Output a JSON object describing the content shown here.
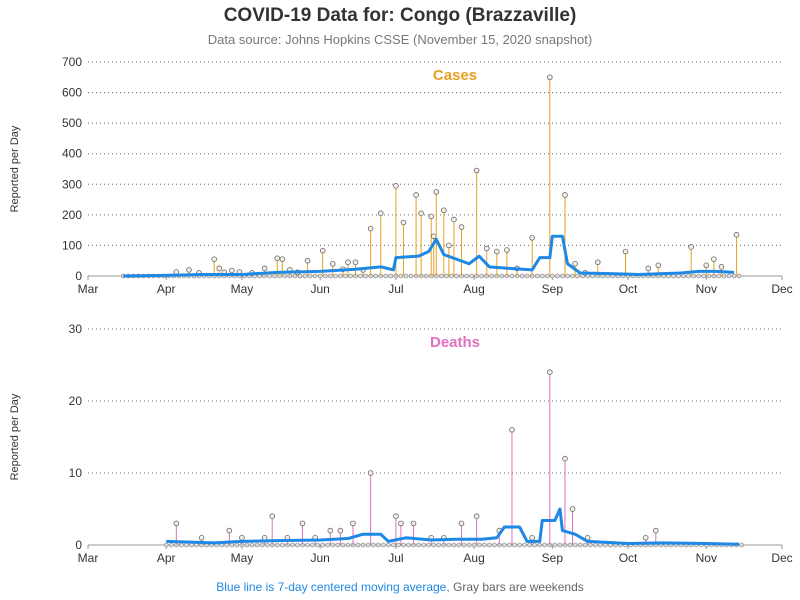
{
  "header": {
    "title": "COVID-19 Data for: Congo (Brazzaville)",
    "subtitle": "Data source: Johns Hopkins CSSE (November 15, 2020 snapshot)"
  },
  "footer": {
    "avg_note": "Blue line is 7-day centered moving average,",
    "weekend_note": "Gray bars are weekends"
  },
  "colors": {
    "cases": "#e8a020",
    "deaths": "#e070c0",
    "average": "#1e88e5",
    "weekend": "#888888",
    "grid": "#666666"
  },
  "chart_data": [
    {
      "type": "line",
      "title": "Cases",
      "ylabel": "Reported per Day",
      "ylim": [
        0,
        700
      ],
      "yticks": [
        0,
        100,
        200,
        300,
        400,
        500,
        600,
        700
      ],
      "xlim": [
        "2020-03-01",
        "2020-12-01"
      ],
      "xticks": [
        {
          "date": "2020-03-01",
          "label": "Mar"
        },
        {
          "date": "2020-04-01",
          "label": "Apr"
        },
        {
          "date": "2020-05-01",
          "label": "May"
        },
        {
          "date": "2020-06-01",
          "label": "Jun"
        },
        {
          "date": "2020-07-01",
          "label": "Jul"
        },
        {
          "date": "2020-08-01",
          "label": "Aug"
        },
        {
          "date": "2020-09-01",
          "label": "Sep"
        },
        {
          "date": "2020-10-01",
          "label": "Oct"
        },
        {
          "date": "2020-11-01",
          "label": "Nov"
        },
        {
          "date": "2020-12-01",
          "label": "Dec"
        }
      ],
      "grid": true,
      "series": [
        {
          "points": [
            [
              "2020-04-05",
              13
            ],
            [
              "2020-04-10",
              20
            ],
            [
              "2020-04-14",
              10
            ],
            [
              "2020-04-20",
              55
            ],
            [
              "2020-04-22",
              25
            ],
            [
              "2020-04-24",
              12
            ],
            [
              "2020-04-27",
              18
            ],
            [
              "2020-04-30",
              13
            ],
            [
              "2020-05-05",
              10
            ],
            [
              "2020-05-10",
              25
            ],
            [
              "2020-05-15",
              58
            ],
            [
              "2020-05-17",
              55
            ],
            [
              "2020-05-20",
              20
            ],
            [
              "2020-05-23",
              12
            ],
            [
              "2020-05-27",
              50
            ],
            [
              "2020-06-02",
              83
            ],
            [
              "2020-06-06",
              40
            ],
            [
              "2020-06-10",
              22
            ],
            [
              "2020-06-12",
              45
            ],
            [
              "2020-06-15",
              45
            ],
            [
              "2020-06-18",
              20
            ],
            [
              "2020-06-21",
              155
            ],
            [
              "2020-06-25",
              205
            ],
            [
              "2020-07-01",
              295
            ],
            [
              "2020-07-04",
              175
            ],
            [
              "2020-07-09",
              265
            ],
            [
              "2020-07-11",
              205
            ],
            [
              "2020-07-15",
              195
            ],
            [
              "2020-07-16",
              130
            ],
            [
              "2020-07-17",
              275
            ],
            [
              "2020-07-20",
              215
            ],
            [
              "2020-07-22",
              100
            ],
            [
              "2020-07-24",
              185
            ],
            [
              "2020-07-27",
              160
            ],
            [
              "2020-08-02",
              345
            ],
            [
              "2020-08-06",
              90
            ],
            [
              "2020-08-10",
              80
            ],
            [
              "2020-08-14",
              85
            ],
            [
              "2020-08-18",
              25
            ],
            [
              "2020-08-24",
              125
            ],
            [
              "2020-08-31",
              650
            ],
            [
              "2020-09-06",
              265
            ],
            [
              "2020-09-10",
              40
            ],
            [
              "2020-09-14",
              10
            ],
            [
              "2020-09-19",
              45
            ],
            [
              "2020-09-30",
              80
            ],
            [
              "2020-10-09",
              25
            ],
            [
              "2020-10-13",
              35
            ],
            [
              "2020-10-26",
              95
            ],
            [
              "2020-11-01",
              35
            ],
            [
              "2020-11-04",
              55
            ],
            [
              "2020-11-07",
              30
            ],
            [
              "2020-11-13",
              135
            ]
          ]
        },
        {
          "name": "7-day average",
          "points": [
            [
              "2020-03-15",
              0
            ],
            [
              "2020-04-01",
              2
            ],
            [
              "2020-04-15",
              5
            ],
            [
              "2020-05-01",
              5
            ],
            [
              "2020-05-15",
              12
            ],
            [
              "2020-06-01",
              15
            ],
            [
              "2020-06-15",
              22
            ],
            [
              "2020-06-25",
              30
            ],
            [
              "2020-06-30",
              20
            ],
            [
              "2020-07-01",
              60
            ],
            [
              "2020-07-10",
              65
            ],
            [
              "2020-07-14",
              80
            ],
            [
              "2020-07-17",
              120
            ],
            [
              "2020-07-20",
              70
            ],
            [
              "2020-07-30",
              40
            ],
            [
              "2020-08-03",
              65
            ],
            [
              "2020-08-07",
              30
            ],
            [
              "2020-08-15",
              25
            ],
            [
              "2020-08-24",
              20
            ],
            [
              "2020-08-27",
              60
            ],
            [
              "2020-08-31",
              60
            ],
            [
              "2020-09-01",
              130
            ],
            [
              "2020-09-05",
              130
            ],
            [
              "2020-09-07",
              40
            ],
            [
              "2020-09-12",
              10
            ],
            [
              "2020-09-22",
              8
            ],
            [
              "2020-10-05",
              5
            ],
            [
              "2020-10-22",
              10
            ],
            [
              "2020-10-29",
              15
            ],
            [
              "2020-11-05",
              15
            ],
            [
              "2020-11-12",
              12
            ]
          ]
        }
      ]
    },
    {
      "type": "line",
      "title": "Deaths",
      "ylabel": "Reported per Day",
      "ylim": [
        0,
        30
      ],
      "yticks": [
        0,
        10,
        20,
        30
      ],
      "xlim": [
        "2020-03-01",
        "2020-12-01"
      ],
      "xticks": [
        {
          "date": "2020-03-01",
          "label": "Mar"
        },
        {
          "date": "2020-04-01",
          "label": "Apr"
        },
        {
          "date": "2020-05-01",
          "label": "May"
        },
        {
          "date": "2020-06-01",
          "label": "Jun"
        },
        {
          "date": "2020-07-01",
          "label": "Jul"
        },
        {
          "date": "2020-08-01",
          "label": "Aug"
        },
        {
          "date": "2020-09-01",
          "label": "Sep"
        },
        {
          "date": "2020-10-01",
          "label": "Oct"
        },
        {
          "date": "2020-11-01",
          "label": "Nov"
        },
        {
          "date": "2020-12-01",
          "label": "Dec"
        }
      ],
      "grid": true,
      "series": [
        {
          "points": [
            [
              "2020-04-05",
              3
            ],
            [
              "2020-04-15",
              1
            ],
            [
              "2020-04-26",
              2
            ],
            [
              "2020-05-01",
              1
            ],
            [
              "2020-05-10",
              1
            ],
            [
              "2020-05-13",
              4
            ],
            [
              "2020-05-19",
              1
            ],
            [
              "2020-05-25",
              3
            ],
            [
              "2020-05-30",
              1
            ],
            [
              "2020-06-05",
              2
            ],
            [
              "2020-06-09",
              2
            ],
            [
              "2020-06-14",
              3
            ],
            [
              "2020-06-21",
              10
            ],
            [
              "2020-07-01",
              4
            ],
            [
              "2020-07-03",
              3
            ],
            [
              "2020-07-08",
              3
            ],
            [
              "2020-07-15",
              1
            ],
            [
              "2020-07-20",
              1
            ],
            [
              "2020-07-27",
              3
            ],
            [
              "2020-08-02",
              4
            ],
            [
              "2020-08-11",
              2
            ],
            [
              "2020-08-16",
              16
            ],
            [
              "2020-08-24",
              1
            ],
            [
              "2020-08-31",
              24
            ],
            [
              "2020-09-06",
              12
            ],
            [
              "2020-09-09",
              5
            ],
            [
              "2020-09-15",
              1
            ],
            [
              "2020-10-08",
              1
            ],
            [
              "2020-10-12",
              2
            ]
          ]
        },
        {
          "name": "7-day average",
          "points": [
            [
              "2020-04-01",
              0.5
            ],
            [
              "2020-04-20",
              0.3
            ],
            [
              "2020-05-01",
              0.5
            ],
            [
              "2020-05-15",
              0.6
            ],
            [
              "2020-06-01",
              0.7
            ],
            [
              "2020-06-12",
              0.9
            ],
            [
              "2020-06-18",
              1.5
            ],
            [
              "2020-06-25",
              1.5
            ],
            [
              "2020-06-28",
              0.5
            ],
            [
              "2020-07-05",
              1.0
            ],
            [
              "2020-07-15",
              0.7
            ],
            [
              "2020-07-25",
              0.8
            ],
            [
              "2020-08-04",
              0.8
            ],
            [
              "2020-08-10",
              1.0
            ],
            [
              "2020-08-13",
              2.5
            ],
            [
              "2020-08-19",
              2.5
            ],
            [
              "2020-08-22",
              0.5
            ],
            [
              "2020-08-27",
              0.5
            ],
            [
              "2020-08-28",
              3.4
            ],
            [
              "2020-09-02",
              3.4
            ],
            [
              "2020-09-04",
              5.0
            ],
            [
              "2020-09-05",
              2.0
            ],
            [
              "2020-09-10",
              1.5
            ],
            [
              "2020-09-15",
              0.5
            ],
            [
              "2020-10-01",
              0.2
            ],
            [
              "2020-10-15",
              0.3
            ],
            [
              "2020-11-01",
              0.2
            ],
            [
              "2020-11-14",
              0.1
            ]
          ]
        }
      ]
    }
  ]
}
